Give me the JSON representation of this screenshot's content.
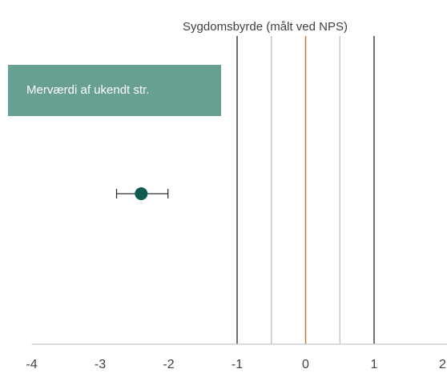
{
  "chart_data": {
    "type": "scatter",
    "title": "Sygdomsbyrde (målt ved NPS)",
    "annotation": "Merværdi af ukendt str.",
    "annotation_color": "#679f93",
    "series": [
      {
        "color": "#0e5a50",
        "values": [
          -2.4
        ],
        "error_minus": [
          0.36
        ],
        "error_plus": [
          0.39
        ]
      }
    ],
    "reference_lines": [
      {
        "value": -1,
        "color": "#404040"
      },
      {
        "value": -0.5,
        "color": "#c8c8c8"
      },
      {
        "value": 0,
        "color": "#c77a2a"
      },
      {
        "value": 0.5,
        "color": "#c8c8c8"
      },
      {
        "value": 1,
        "color": "#404040"
      }
    ],
    "xlim": [
      -4,
      2
    ],
    "xticks": [
      -4,
      -3,
      -2,
      -1,
      0,
      1,
      2
    ]
  }
}
